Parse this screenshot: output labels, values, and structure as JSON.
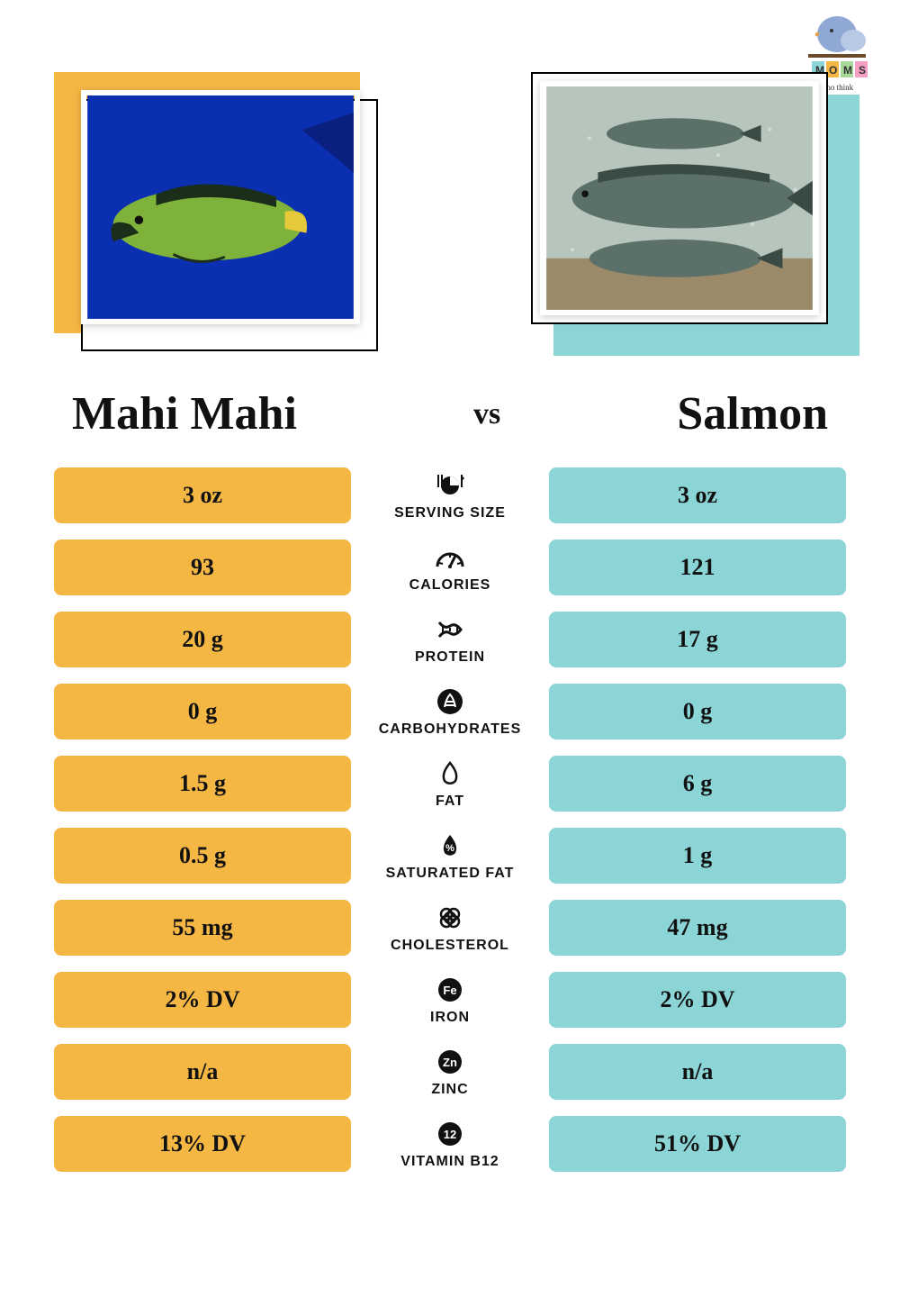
{
  "logo": {
    "text_top": "MOMS",
    "text_bottom": "who think"
  },
  "left": {
    "name": "Mahi Mahi",
    "accent_color": "#f5b744",
    "cell_color": "#f5b744",
    "photo_bg": "#0a2fb0",
    "fish_body": "#7fb23a",
    "fish_fin": "#1a2e1a"
  },
  "right": {
    "name": "Salmon",
    "accent_color": "#8bd5d7",
    "cell_color": "#8bd5d7",
    "photo_bg": "#b7c6bd",
    "fish_body": "#5a7069",
    "fish_fin": "#3a4a44"
  },
  "vs_label": "vs",
  "title_fontsize": "52px",
  "vs_fontsize": "34px",
  "cell_fontsize": "26px",
  "label_fontsize": "16px",
  "text_color": "#111111",
  "rows": [
    {
      "label": "SERVING SIZE",
      "icon": "serving",
      "left": "3 oz",
      "right": "3 oz"
    },
    {
      "label": "CALORIES",
      "icon": "calories",
      "left": "93",
      "right": "121"
    },
    {
      "label": "PROTEIN",
      "icon": "protein",
      "left": "20 g",
      "right": "17 g"
    },
    {
      "label": "CARBOHYDRATES",
      "icon": "carbs",
      "left": "0 g",
      "right": "0 g"
    },
    {
      "label": "FAT",
      "icon": "fat",
      "left": "1.5 g",
      "right": "6 g"
    },
    {
      "label": "SATURATED FAT",
      "icon": "satfat",
      "left": "0.5 g",
      "right": "1 g"
    },
    {
      "label": "CHOLESTEROL",
      "icon": "cholesterol",
      "left": "55 mg",
      "right": "47 mg"
    },
    {
      "label": "IRON",
      "icon": "iron",
      "left": "2% DV",
      "right": "2% DV"
    },
    {
      "label": "ZINC",
      "icon": "zinc",
      "left": "n/a",
      "right": "n/a"
    },
    {
      "label": "VITAMIN B12",
      "icon": "b12",
      "left": "13% DV",
      "right": "51% DV"
    }
  ],
  "icons_color": "#111111"
}
